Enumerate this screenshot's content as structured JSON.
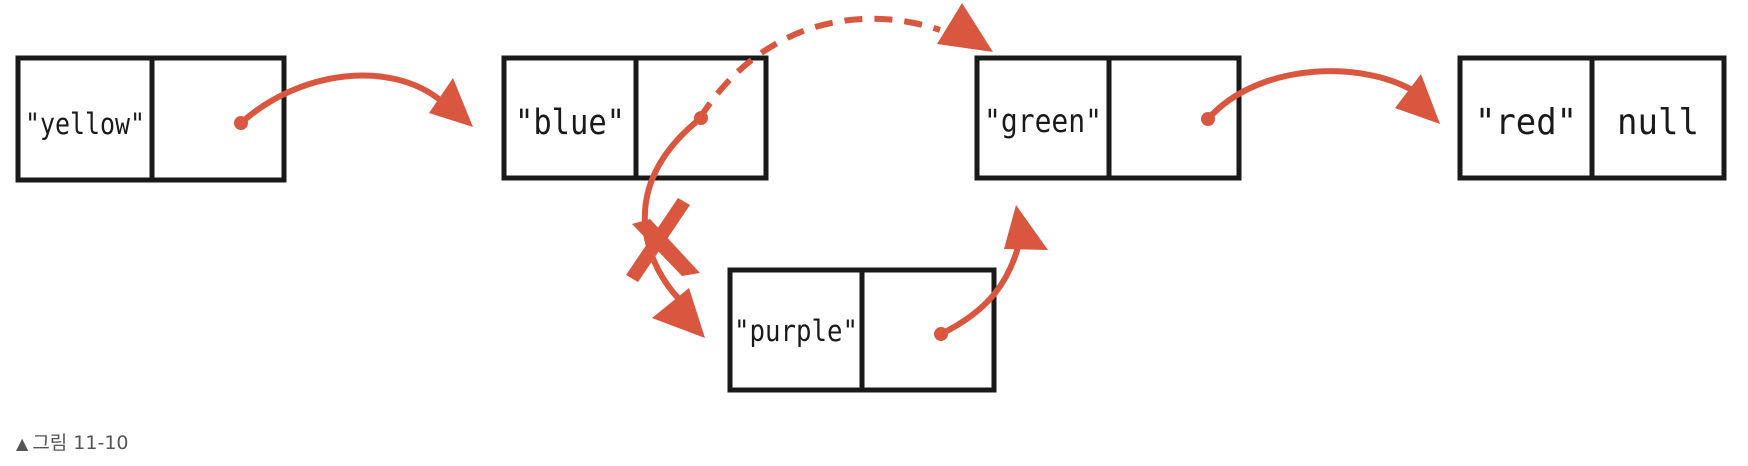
{
  "nodes": [
    {
      "value": "\"yellow\"",
      "next": ""
    },
    {
      "value": "\"blue\"",
      "next": ""
    },
    {
      "value": "\"green\"",
      "next": ""
    },
    {
      "value": "\"red\"",
      "next": "null"
    },
    {
      "value": "\"purple\"",
      "next": ""
    }
  ],
  "colors": {
    "arrow": "#d9573f",
    "box": "#1a1a1a"
  },
  "caption": {
    "marker": "▲",
    "text": "그림 11-10"
  }
}
